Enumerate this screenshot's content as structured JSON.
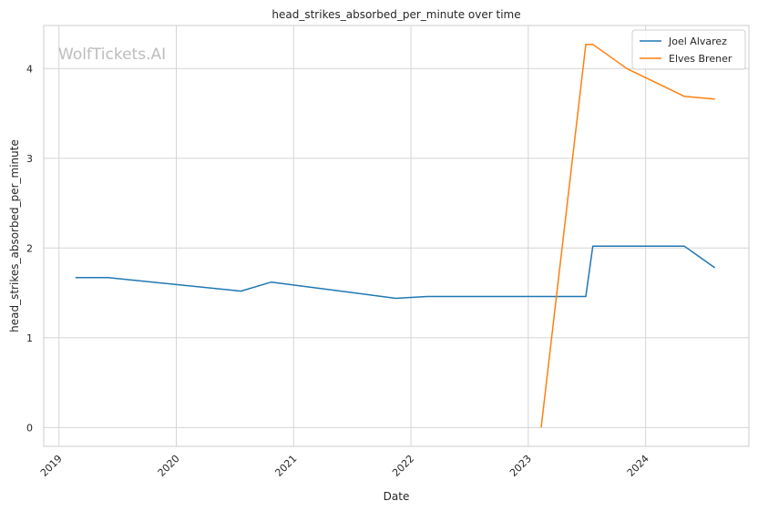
{
  "chart_data": {
    "type": "line",
    "title": "head_strikes_absorbed_per_minute over time",
    "xlabel": "Date",
    "ylabel": "head_strikes_absorbed_per_minute",
    "watermark": "WolfTickets.AI",
    "x_ticks": [
      "2019",
      "2020",
      "2021",
      "2022",
      "2023",
      "2024"
    ],
    "x_tick_values": [
      2019.0,
      2020.0,
      2021.0,
      2022.0,
      2023.0,
      2024.0
    ],
    "xlim": [
      2018.87,
      2024.88
    ],
    "y_ticks": [
      "0",
      "1",
      "2",
      "3",
      "4"
    ],
    "ylim": [
      -0.21,
      4.48
    ],
    "grid": true,
    "legend_position": "top-right",
    "series": [
      {
        "name": "Joel Alvarez",
        "color": "#1f77b4",
        "points": [
          [
            2019.14,
            1.67
          ],
          [
            2019.42,
            1.67
          ],
          [
            2020.55,
            1.52
          ],
          [
            2020.81,
            1.62
          ],
          [
            2021.87,
            1.44
          ],
          [
            2022.14,
            1.46
          ],
          [
            2023.49,
            1.46
          ],
          [
            2023.55,
            2.02
          ],
          [
            2024.33,
            2.02
          ],
          [
            2024.59,
            1.78
          ]
        ]
      },
      {
        "name": "Elves Brener",
        "color": "#ff7f0e",
        "points": [
          [
            2023.11,
            0.0
          ],
          [
            2023.49,
            4.27
          ],
          [
            2023.55,
            4.27
          ],
          [
            2023.84,
            4.0
          ],
          [
            2024.33,
            3.69
          ],
          [
            2024.59,
            3.66
          ]
        ]
      }
    ]
  }
}
